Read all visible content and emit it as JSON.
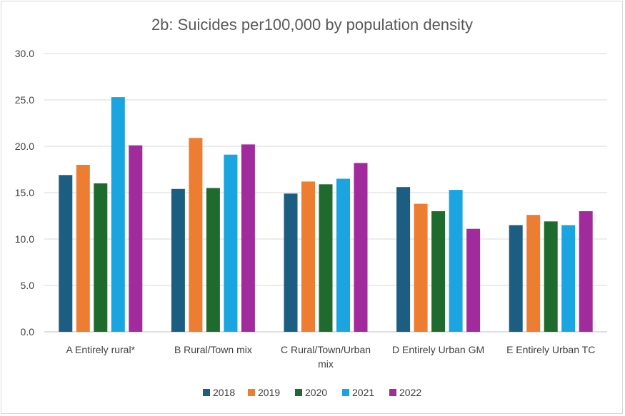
{
  "chart_data": {
    "type": "bar",
    "title": "2b: Suicides per100,000 by population density",
    "xlabel": "",
    "ylabel": "",
    "ylim": [
      0,
      30
    ],
    "yticks": [
      "0.0",
      "5.0",
      "10.0",
      "15.0",
      "20.0",
      "25.0",
      "30.0"
    ],
    "grid": true,
    "legend_position": "bottom",
    "categories": [
      [
        "A Entirely rural*"
      ],
      [
        "B Rural/Town mix"
      ],
      [
        "C Rural/Town/Urban",
        "mix"
      ],
      [
        "D Entirely Urban GM"
      ],
      [
        "E Entirely Urban TC"
      ]
    ],
    "series": [
      {
        "name": "2018",
        "color": "#1b5e82",
        "values": [
          16.9,
          15.4,
          14.9,
          15.6,
          11.5
        ]
      },
      {
        "name": "2019",
        "color": "#ed7d31",
        "values": [
          18.0,
          20.9,
          16.2,
          13.8,
          12.6
        ]
      },
      {
        "name": "2020",
        "color": "#1e6b2d",
        "values": [
          16.0,
          15.5,
          15.9,
          13.0,
          11.9
        ]
      },
      {
        "name": "2021",
        "color": "#1ba5e0",
        "values": [
          25.3,
          19.1,
          16.5,
          15.3,
          11.5
        ]
      },
      {
        "name": "2022",
        "color": "#a12b9c",
        "values": [
          20.1,
          20.2,
          18.2,
          11.1,
          13.0
        ]
      }
    ]
  }
}
